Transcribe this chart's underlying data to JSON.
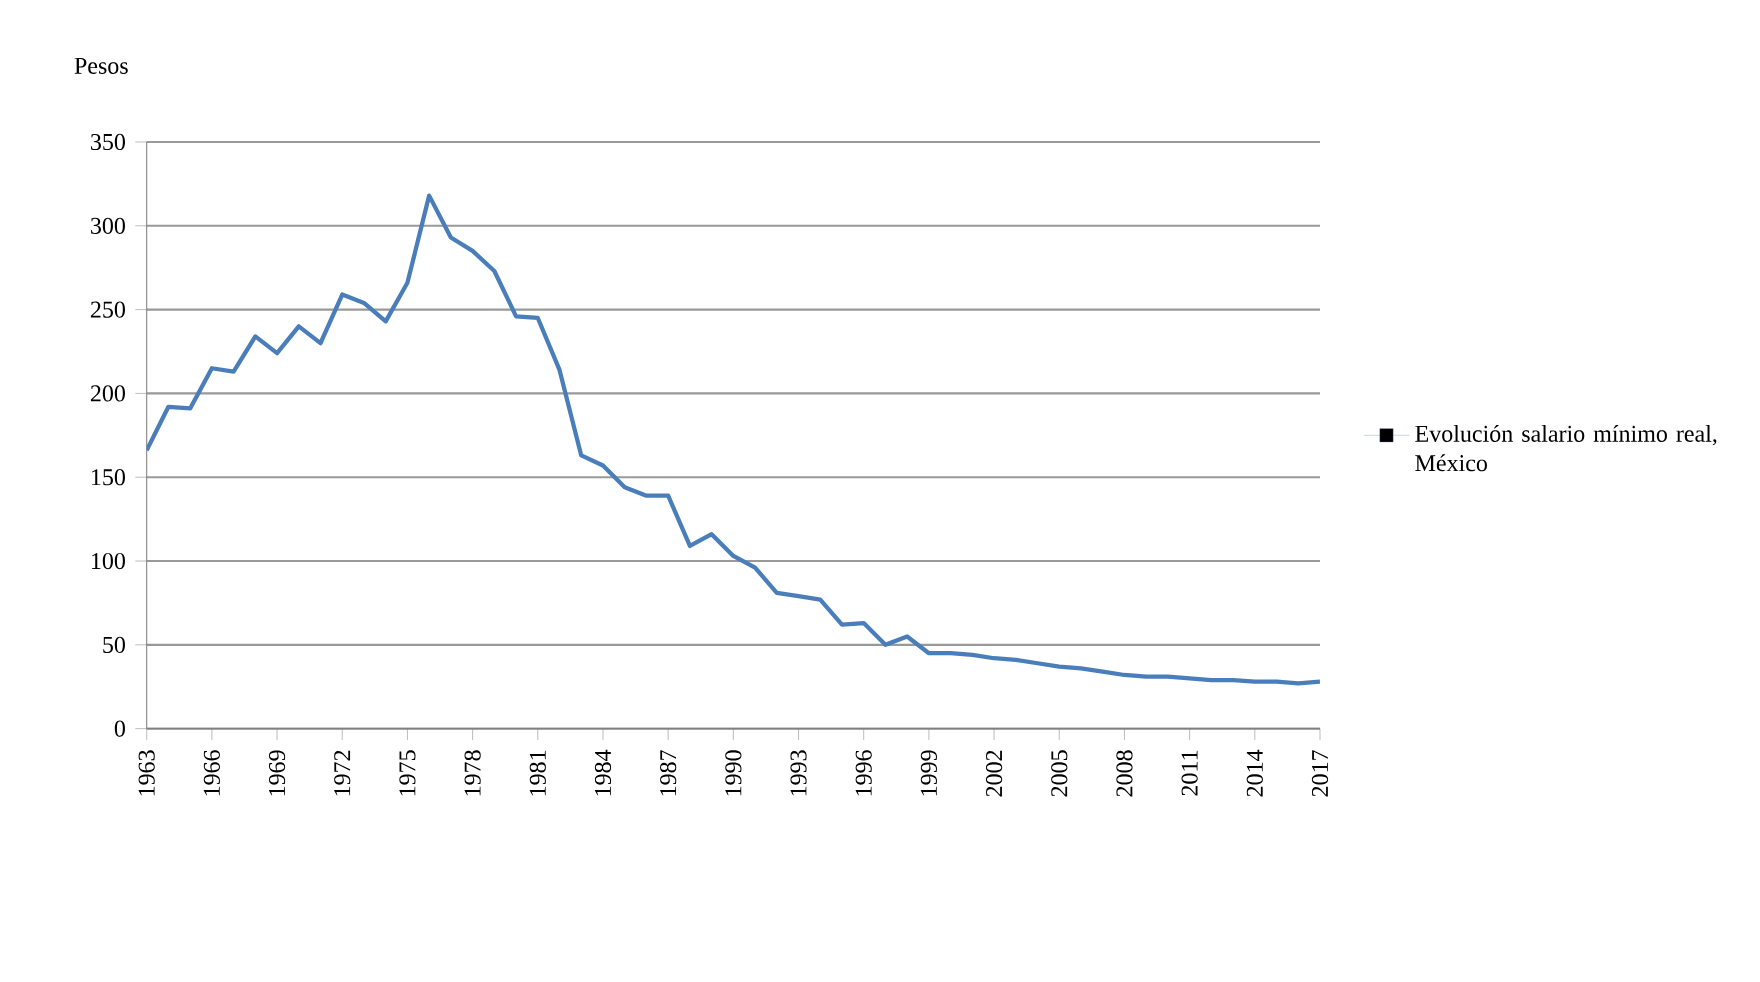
{
  "chart_data": {
    "type": "line",
    "ylabel": "Pesos",
    "x": [
      1963,
      1964,
      1965,
      1966,
      1967,
      1968,
      1969,
      1970,
      1971,
      1972,
      1973,
      1974,
      1975,
      1976,
      1977,
      1978,
      1979,
      1980,
      1981,
      1982,
      1983,
      1984,
      1985,
      1986,
      1987,
      1988,
      1989,
      1990,
      1991,
      1992,
      1993,
      1994,
      1995,
      1996,
      1997,
      1998,
      1999,
      2000,
      2001,
      2002,
      2003,
      2004,
      2005,
      2006,
      2007,
      2008,
      2009,
      2010,
      2011,
      2012,
      2013,
      2014,
      2015,
      2016,
      2017
    ],
    "series": [
      {
        "name": "Evolución salario mínimo real, México",
        "color": "#4a7ebb",
        "values": [
          166,
          192,
          191,
          215,
          213,
          234,
          224,
          240,
          230,
          259,
          254,
          243,
          266,
          318,
          293,
          285,
          273,
          246,
          245,
          214,
          163,
          157,
          144,
          139,
          139,
          109,
          116,
          103,
          96,
          81,
          79,
          77,
          62,
          63,
          50,
          55,
          45,
          45,
          44,
          42,
          41,
          39,
          37,
          36,
          34,
          32,
          31,
          31,
          30,
          29,
          29,
          28,
          28,
          27,
          28
        ]
      }
    ],
    "xlim": [
      1963,
      2017
    ],
    "xticks": [
      1963,
      1966,
      1969,
      1972,
      1975,
      1978,
      1981,
      1984,
      1987,
      1990,
      1993,
      1996,
      1999,
      2002,
      2005,
      2008,
      2011,
      2014,
      2017
    ],
    "ylim": [
      0,
      350
    ],
    "yticks": [
      0,
      50,
      100,
      150,
      200,
      250,
      300,
      350
    ],
    "grid": "y",
    "legend": "right",
    "marker": "none",
    "line_style": "solid"
  }
}
